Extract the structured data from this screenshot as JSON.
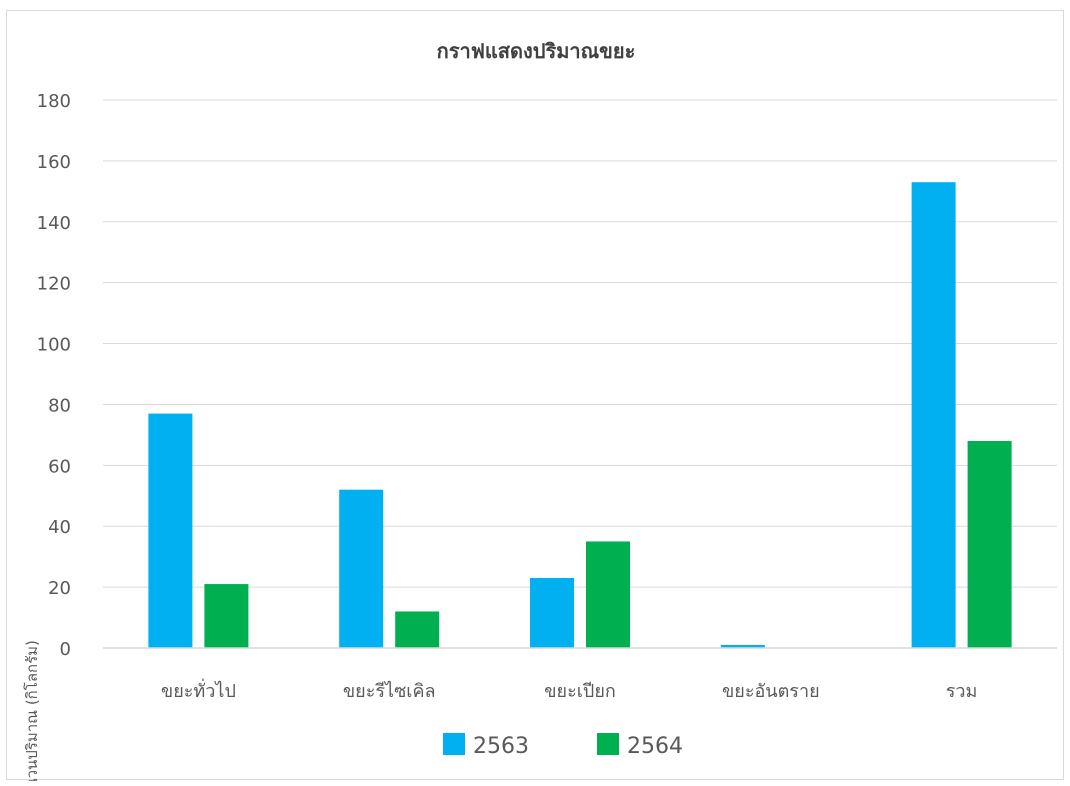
{
  "chart_data": {
    "type": "bar",
    "title": "กราฟแสดงปริมาณขยะ",
    "xlabel": "",
    "ylabel": "จำนวนปริมาณ (กิโลกรัม)",
    "categories": [
      "ขยะทั่วไป",
      "ขยะรีไซเคิล",
      "ขยะเปียก",
      "ขยะอันตราย",
      "รวม"
    ],
    "series": [
      {
        "name": "2563",
        "color": "#00b0f0",
        "values": [
          77,
          52,
          23,
          1,
          153
        ]
      },
      {
        "name": "2564",
        "color": "#00b050",
        "values": [
          21,
          12,
          35,
          0,
          68
        ]
      }
    ],
    "ylim": [
      0,
      180
    ],
    "yticks": [
      "0",
      "20",
      "40",
      "60",
      "80",
      "100",
      "120",
      "140",
      "160",
      "180"
    ],
    "grid": true,
    "legend_position": "bottom"
  }
}
